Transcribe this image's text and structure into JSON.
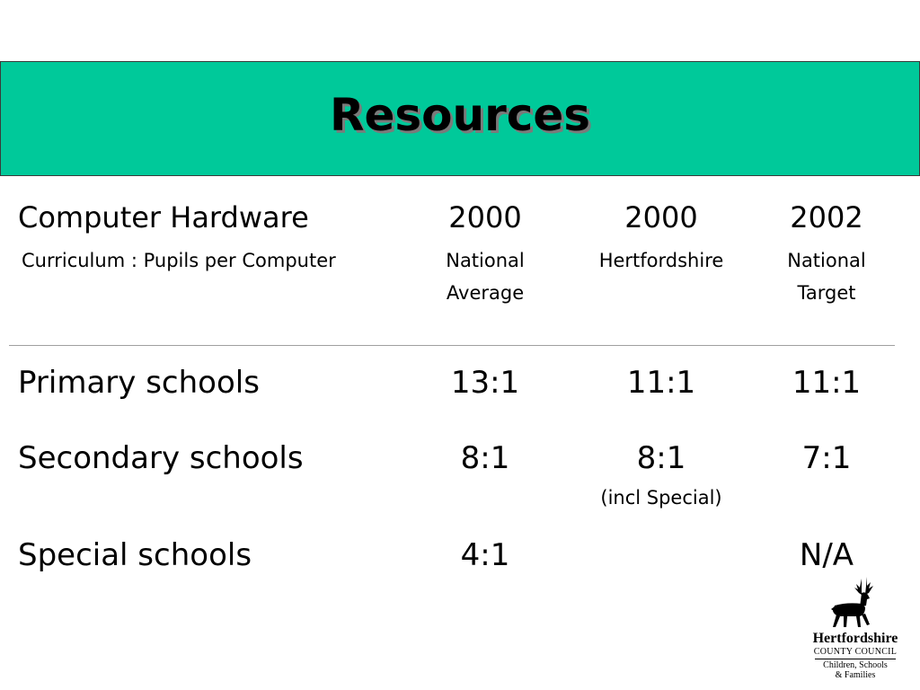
{
  "title": "Resources",
  "colors": {
    "title_band": "#00c99a",
    "text": "#000000",
    "rule": "#a0a0a0"
  },
  "table": {
    "header": {
      "label": "Computer Hardware",
      "sublabel": "Curriculum : Pupils per Computer",
      "columns": [
        {
          "year": "2000",
          "line1": "National",
          "line2": "Average"
        },
        {
          "year": "2000",
          "line1": "Hertfordshire",
          "line2": ""
        },
        {
          "year": "2002",
          "line1": "National",
          "line2": "Target"
        }
      ]
    },
    "rows": [
      {
        "label": "Primary schools",
        "values": [
          "13:1",
          "11:1",
          "11:1"
        ],
        "note": ""
      },
      {
        "label": "Secondary schools",
        "values": [
          "8:1",
          "8:1",
          "7:1"
        ],
        "note": "(incl Special)"
      },
      {
        "label": "Special schools",
        "values": [
          "4:1",
          "",
          "N/A"
        ],
        "note": ""
      }
    ]
  },
  "logo": {
    "icon": "stag-icon",
    "line1": "Hertfordshire",
    "line2": "COUNTY COUNCIL",
    "line3": "Children, Schools",
    "line4": "& Families"
  }
}
